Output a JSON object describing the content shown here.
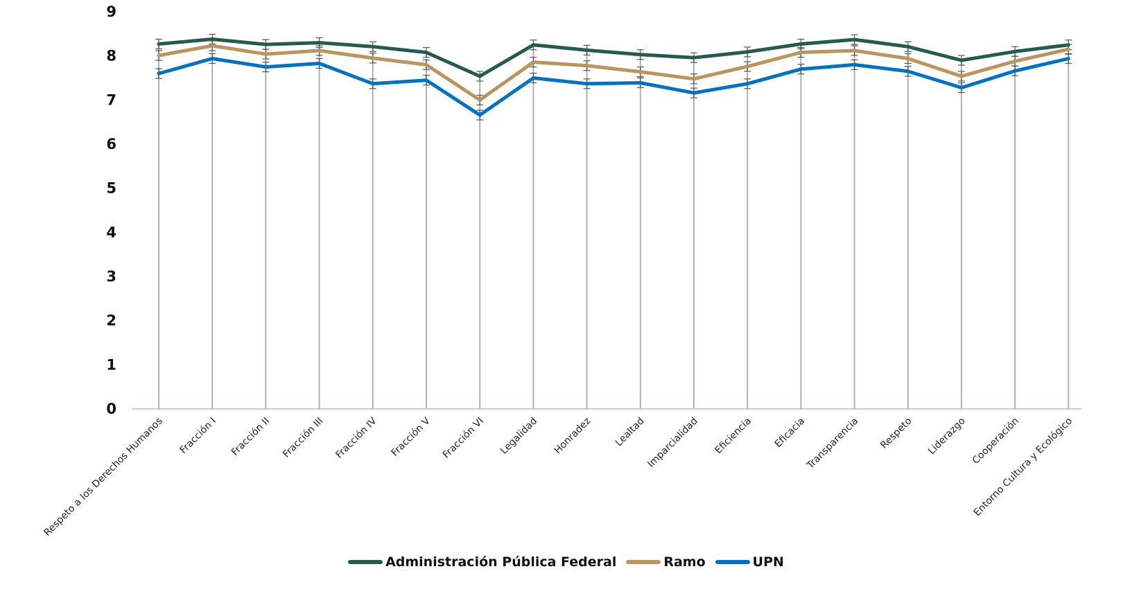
{
  "chart_data": {
    "type": "line",
    "categories": [
      "Respeto a los Derechos Humanos",
      "Fracción I",
      "Fracción II",
      "Fracción III",
      "Fracción IV",
      "Fracción V",
      "Fracción VI",
      "Legalidad",
      "Honradez",
      "Lealtad",
      "Imparcialidad",
      "Eficiencia",
      "Eficacia",
      "Transparencia",
      "Respeto",
      "Liderazgo",
      "Cooperación",
      "Entorno Cultura y Ecológico"
    ],
    "series": [
      {
        "name": "Administración Pública Federal",
        "color": "#235b4e",
        "values": [
          8.27,
          8.38,
          8.26,
          8.3,
          8.21,
          8.08,
          7.54,
          8.25,
          8.13,
          8.03,
          7.96,
          8.09,
          8.27,
          8.37,
          8.21,
          7.9,
          8.1,
          8.25
        ]
      },
      {
        "name": "Ramo",
        "color": "#bc955c",
        "values": [
          8.01,
          8.23,
          8.04,
          8.12,
          7.95,
          7.8,
          7.0,
          7.86,
          7.78,
          7.64,
          7.48,
          7.76,
          8.08,
          8.12,
          7.94,
          7.54,
          7.88,
          8.15
        ]
      },
      {
        "name": "UPN",
        "color": "#0072c6",
        "values": [
          7.6,
          7.94,
          7.75,
          7.83,
          7.37,
          7.45,
          6.66,
          7.5,
          7.37,
          7.39,
          7.16,
          7.37,
          7.7,
          7.8,
          7.65,
          7.28,
          7.66,
          7.94
        ]
      }
    ],
    "y_ticks": [
      "0",
      "1",
      "2",
      "3",
      "4",
      "5",
      "6",
      "7",
      "8",
      "9"
    ],
    "ylim": [
      0,
      9
    ],
    "grid": "vertical drop lines",
    "error_bars": true,
    "legend_position": "bottom"
  }
}
